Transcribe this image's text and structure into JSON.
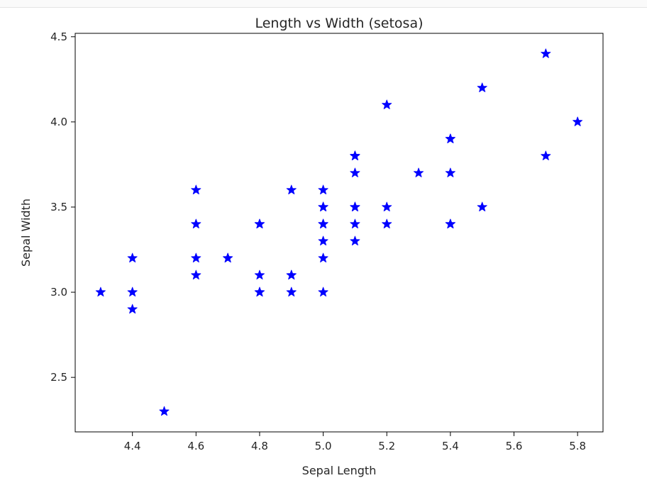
{
  "chart_data": {
    "type": "scatter",
    "title": "Length vs Width (setosa)",
    "xlabel": "Sepal Length",
    "ylabel": "Sepal Width",
    "xlim": [
      4.22,
      5.88
    ],
    "ylim": [
      2.18,
      4.52
    ],
    "x_ticks": [
      "4.4",
      "4.6",
      "4.8",
      "5.0",
      "5.2",
      "5.4",
      "5.6",
      "5.8"
    ],
    "y_ticks": [
      "2.5",
      "3.0",
      "3.5",
      "4.0",
      "4.5"
    ],
    "marker": "star",
    "color": "#0000ff",
    "grid": false,
    "points": [
      [
        5.1,
        3.5
      ],
      [
        4.9,
        3.0
      ],
      [
        4.7,
        3.2
      ],
      [
        4.6,
        3.1
      ],
      [
        5.0,
        3.6
      ],
      [
        5.4,
        3.9
      ],
      [
        4.6,
        3.4
      ],
      [
        5.0,
        3.4
      ],
      [
        4.4,
        2.9
      ],
      [
        4.9,
        3.1
      ],
      [
        5.4,
        3.7
      ],
      [
        4.8,
        3.4
      ],
      [
        4.8,
        3.0
      ],
      [
        4.3,
        3.0
      ],
      [
        5.8,
        4.0
      ],
      [
        5.7,
        4.4
      ],
      [
        5.4,
        3.9
      ],
      [
        5.1,
        3.5
      ],
      [
        5.7,
        3.8
      ],
      [
        5.1,
        3.8
      ],
      [
        5.4,
        3.4
      ],
      [
        5.1,
        3.7
      ],
      [
        4.6,
        3.6
      ],
      [
        5.1,
        3.3
      ],
      [
        4.8,
        3.4
      ],
      [
        5.0,
        3.0
      ],
      [
        5.0,
        3.4
      ],
      [
        5.2,
        3.5
      ],
      [
        5.2,
        3.4
      ],
      [
        4.7,
        3.2
      ],
      [
        4.8,
        3.1
      ],
      [
        5.4,
        3.4
      ],
      [
        5.2,
        4.1
      ],
      [
        5.5,
        4.2
      ],
      [
        4.9,
        3.1
      ],
      [
        5.0,
        3.2
      ],
      [
        5.5,
        3.5
      ],
      [
        4.9,
        3.6
      ],
      [
        4.4,
        3.0
      ],
      [
        5.1,
        3.4
      ],
      [
        5.0,
        3.5
      ],
      [
        4.5,
        2.3
      ],
      [
        4.4,
        3.2
      ],
      [
        5.0,
        3.5
      ],
      [
        5.1,
        3.8
      ],
      [
        4.8,
        3.0
      ],
      [
        5.1,
        3.8
      ],
      [
        4.6,
        3.2
      ],
      [
        5.3,
        3.7
      ],
      [
        5.0,
        3.3
      ]
    ]
  }
}
